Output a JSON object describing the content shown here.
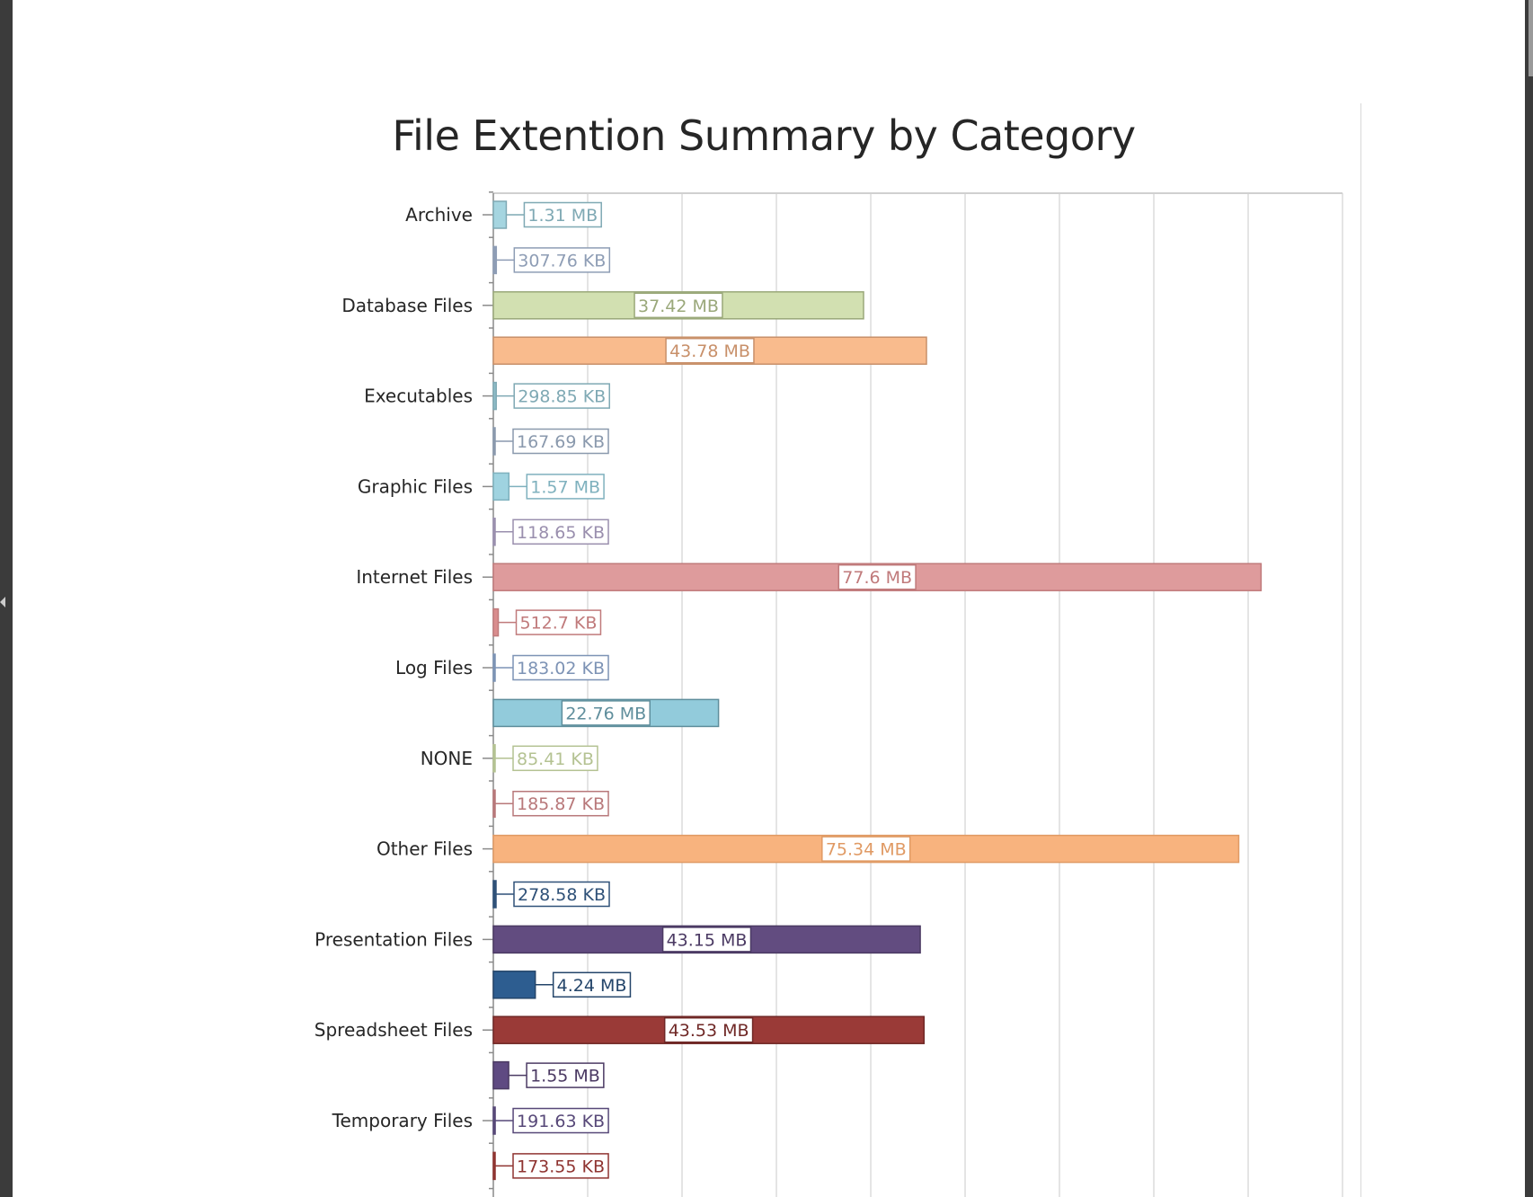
{
  "chart_data": {
    "type": "bar",
    "orientation": "horizontal",
    "title": "File Extention Summary by Category",
    "xlabel": "",
    "ylabel": "",
    "value_unit": "MB",
    "xlim_mb": [
      0,
      85.83
    ],
    "grid": true,
    "categories": [
      "Archive",
      "Database Files",
      "Executables",
      "Graphic Files",
      "Internet Files",
      "Log Files",
      "NONE",
      "Other Files",
      "Presentation Files",
      "Spreadsheet Files",
      "Temporary Files"
    ],
    "bars": [
      {
        "category": "Archive",
        "value_mb": 1.31,
        "label": "1.31 MB",
        "color": "#a5d5e0",
        "border": "#7fa9b4"
      },
      {
        "category": "Archive",
        "value_mb": 0.3005,
        "label": "307.76 KB",
        "color": "#8e9db5",
        "border": "#8e9db5"
      },
      {
        "category": "Database Files",
        "value_mb": 37.42,
        "label": "37.42 MB",
        "color": "#d2e0b1",
        "border": "#9aa87a"
      },
      {
        "category": "Database Files",
        "value_mb": 43.78,
        "label": "43.78 MB",
        "color": "#f9bb8d",
        "border": "#c8906a"
      },
      {
        "category": "Executables",
        "value_mb": 0.2918,
        "label": "298.85 KB",
        "color": "#8fbcc8",
        "border": "#7fa9b4"
      },
      {
        "category": "Executables",
        "value_mb": 0.1638,
        "label": "167.69 KB",
        "color": "#8a99ad",
        "border": "#8a99ad"
      },
      {
        "category": "Graphic Files",
        "value_mb": 1.57,
        "label": "1.57 MB",
        "color": "#9fd3e0",
        "border": "#7fb1be"
      },
      {
        "category": "Graphic Files",
        "value_mb": 0.1159,
        "label": "118.65 KB",
        "color": "#9a8fae",
        "border": "#9a8fae"
      },
      {
        "category": "Internet Files",
        "value_mb": 77.6,
        "label": "77.6 MB",
        "color": "#de9b9c",
        "border": "#c07a7b"
      },
      {
        "category": "Internet Files",
        "value_mb": 0.5007,
        "label": "512.7 KB",
        "color": "#d98d8e",
        "border": "#c07a7b"
      },
      {
        "category": "Log Files",
        "value_mb": 0.1787,
        "label": "183.02 KB",
        "color": "#7d93b5",
        "border": "#7d93b5"
      },
      {
        "category": "Log Files",
        "value_mb": 22.76,
        "label": "22.76 MB",
        "color": "#92cbdb",
        "border": "#5f8e9c"
      },
      {
        "category": "NONE",
        "value_mb": 0.0834,
        "label": "85.41 KB",
        "color": "#b4c292",
        "border": "#b4c292"
      },
      {
        "category": "NONE",
        "value_mb": 0.1815,
        "label": "185.87 KB",
        "color": "#b8787a",
        "border": "#b8787a"
      },
      {
        "category": "Other Files",
        "value_mb": 75.34,
        "label": "75.34 MB",
        "color": "#f8b37e",
        "border": "#e09a64"
      },
      {
        "category": "Other Files",
        "value_mb": 0.272,
        "label": "278.58 KB",
        "color": "#2f5178",
        "border": "#2f5178"
      },
      {
        "category": "Presentation Files",
        "value_mb": 43.15,
        "label": "43.15 MB",
        "color": "#624c80",
        "border": "#4b3a63"
      },
      {
        "category": "Presentation Files",
        "value_mb": 4.24,
        "label": "4.24 MB",
        "color": "#2d5d90",
        "border": "#24456a"
      },
      {
        "category": "Spreadsheet Files",
        "value_mb": 43.53,
        "label": "43.53 MB",
        "color": "#9a3a37",
        "border": "#6f2826"
      },
      {
        "category": "Spreadsheet Files",
        "value_mb": 1.55,
        "label": "1.55 MB",
        "color": "#5f4a82",
        "border": "#4b3a63"
      },
      {
        "category": "Temporary Files",
        "value_mb": 0.1871,
        "label": "191.63 KB",
        "color": "#574878",
        "border": "#574878"
      },
      {
        "category": "Temporary Files",
        "value_mb": 0.1695,
        "label": "173.55 KB",
        "color": "#8f3431",
        "border": "#8f3431"
      }
    ]
  }
}
